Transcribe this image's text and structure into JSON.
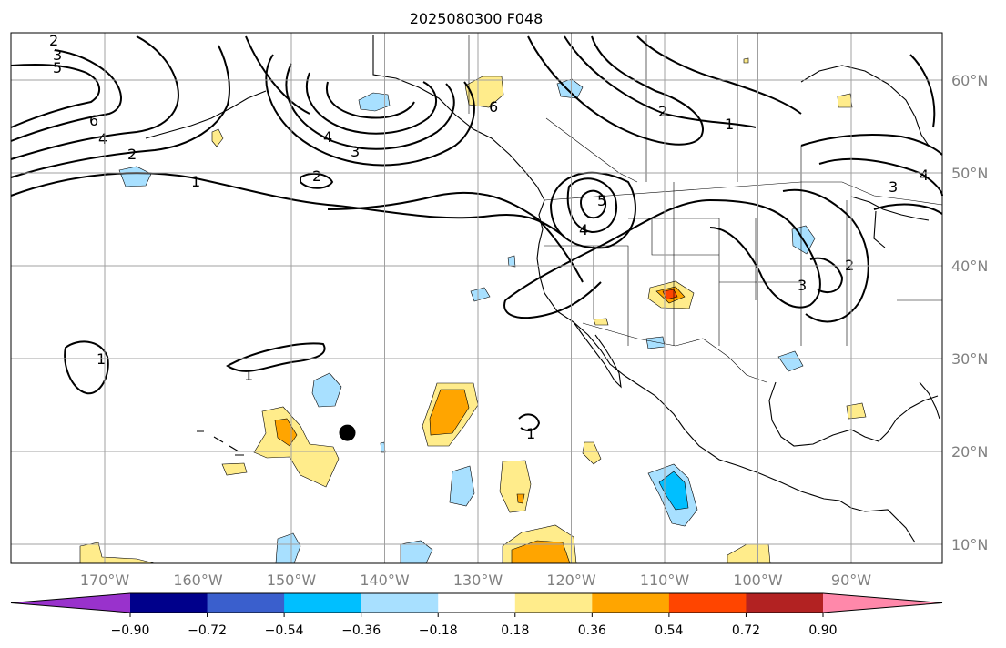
{
  "title": "2025080300 F048",
  "axes": {
    "lon_ticks": [
      "170°W",
      "160°W",
      "150°W",
      "140°W",
      "130°W",
      "120°W",
      "110°W",
      "100°W",
      "90°W"
    ],
    "lat_ticks": [
      "60°N",
      "50°N",
      "40°N",
      "30°N",
      "20°N",
      "10°N"
    ],
    "grid": true
  },
  "colorbar": {
    "tick_labels": [
      "−0.90",
      "−0.72",
      "−0.54",
      "−0.36",
      "−0.18",
      "0.18",
      "0.36",
      "0.54",
      "0.72",
      "0.90"
    ],
    "colors": [
      "#9932cc",
      "#00008b",
      "#3a5fcd",
      "#00bfff",
      "#a8e0ff",
      "#ffffff",
      "#ffec8b",
      "#ffa500",
      "#ff4500",
      "#b22222",
      "#ff88aa"
    ],
    "extend": "both"
  },
  "contour_labels": [
    {
      "text": "2"
    },
    {
      "text": "3"
    },
    {
      "text": "5"
    },
    {
      "text": "6"
    },
    {
      "text": "4"
    },
    {
      "text": "2"
    },
    {
      "text": "1"
    },
    {
      "text": "2"
    },
    {
      "text": "4"
    },
    {
      "text": "3"
    },
    {
      "text": "6"
    },
    {
      "text": "2"
    },
    {
      "text": "1"
    },
    {
      "text": "5"
    },
    {
      "text": "4"
    },
    {
      "text": "3"
    },
    {
      "text": "4"
    },
    {
      "text": "2"
    },
    {
      "text": "3"
    },
    {
      "text": "1"
    },
    {
      "text": "1"
    },
    {
      "text": "1"
    }
  ],
  "marker": {
    "label": "point",
    "lon": -144,
    "lat": 22
  }
}
